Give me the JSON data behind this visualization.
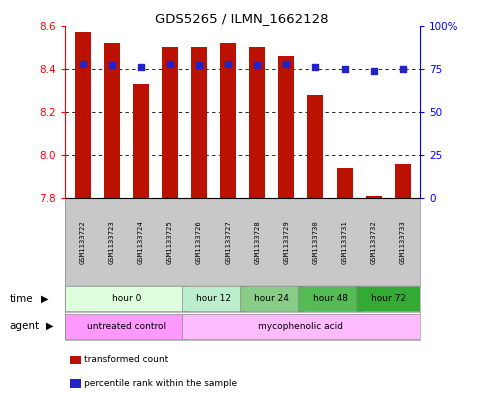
{
  "title": "GDS5265 / ILMN_1662128",
  "samples": [
    "GSM1133722",
    "GSM1133723",
    "GSM1133724",
    "GSM1133725",
    "GSM1133726",
    "GSM1133727",
    "GSM1133728",
    "GSM1133729",
    "GSM1133730",
    "GSM1133731",
    "GSM1133732",
    "GSM1133733"
  ],
  "bar_values": [
    8.57,
    8.52,
    8.33,
    8.5,
    8.5,
    8.52,
    8.5,
    8.46,
    8.28,
    7.94,
    7.81,
    7.96
  ],
  "percentile_values": [
    78,
    77,
    76,
    78,
    77,
    78,
    77,
    78,
    76,
    75,
    74,
    75
  ],
  "bar_bottom": 7.8,
  "ylim_left": [
    7.8,
    8.6
  ],
  "ylim_right": [
    0,
    100
  ],
  "yticks_left": [
    7.8,
    8.0,
    8.2,
    8.4,
    8.6
  ],
  "yticks_right": [
    0,
    25,
    50,
    75,
    100
  ],
  "ytick_labels_right": [
    "0",
    "25",
    "50",
    "75",
    "100%"
  ],
  "bar_color": "#bb1100",
  "percentile_color": "#2222cc",
  "time_groups": [
    {
      "label": "hour 0",
      "start": 0,
      "end": 4,
      "color": "#ddffdd"
    },
    {
      "label": "hour 12",
      "start": 4,
      "end": 6,
      "color": "#bbeecc"
    },
    {
      "label": "hour 24",
      "start": 6,
      "end": 8,
      "color": "#88cc88"
    },
    {
      "label": "hour 48",
      "start": 8,
      "end": 10,
      "color": "#55bb55"
    },
    {
      "label": "hour 72",
      "start": 10,
      "end": 12,
      "color": "#33aa33"
    }
  ],
  "agent_groups": [
    {
      "label": "untreated control",
      "start": 0,
      "end": 4,
      "color": "#ff99ff"
    },
    {
      "label": "mycophenolic acid",
      "start": 4,
      "end": 12,
      "color": "#ffbbff"
    }
  ],
  "legend_bar_label": "transformed count",
  "legend_pct_label": "percentile rank within the sample",
  "xlabel_time": "time",
  "xlabel_agent": "agent",
  "background_color": "#ffffff",
  "sample_bg_color": "#c8c8c8"
}
